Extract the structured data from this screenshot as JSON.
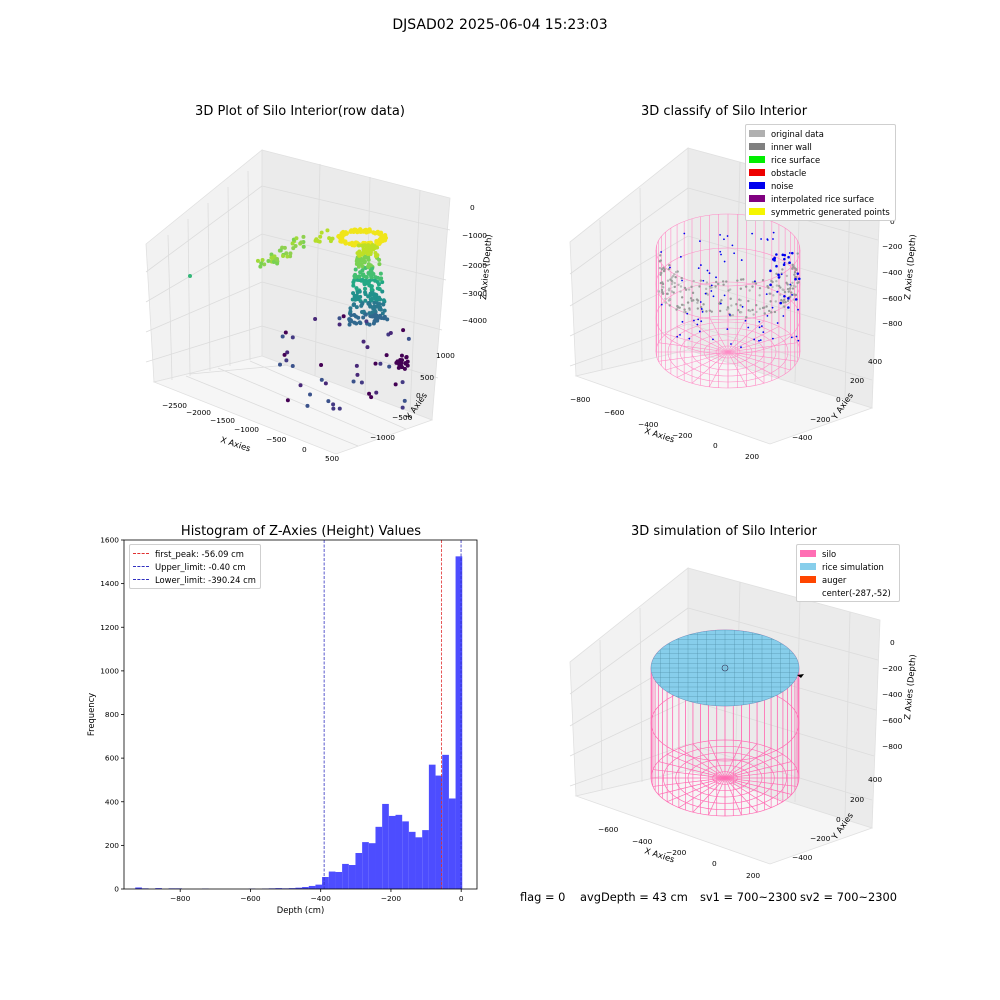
{
  "suptitle": "DJSAD02 2025-06-04 15:23:03",
  "panels": {
    "raw": {
      "title": "3D Plot of Silo Interior(row data)",
      "xlabel": "X Axies",
      "ylabel": "Y Axies",
      "zlabel": "Z Axies (Depth)",
      "xticks": [
        "−2500",
        "−2000",
        "−1500",
        "−1000",
        "−500",
        "0",
        "500"
      ],
      "yticks": [
        "1000",
        "500",
        "0",
        "−500",
        "−1000"
      ],
      "zticks": [
        "0",
        "−1000",
        "−2000",
        "−3000",
        "−4000"
      ]
    },
    "classify": {
      "title": "3D classify of Silo Interior",
      "xlabel": "X Axies",
      "ylabel": "Y Axies",
      "zlabel": "Z Axies (Depth)",
      "xticks": [
        "−800",
        "−600",
        "−400",
        "−200",
        "0",
        "200"
      ],
      "yticks": [
        "400",
        "200",
        "0",
        "−200",
        "−400"
      ],
      "zticks": [
        "0",
        "−200",
        "−400",
        "−600",
        "−800"
      ],
      "legend": [
        {
          "label": "original data",
          "color": "#b0b0b0"
        },
        {
          "label": "inner wall",
          "color": "#808080"
        },
        {
          "label": "rice surface",
          "color": "#00ee00"
        },
        {
          "label": "obstacle",
          "color": "#ee0000"
        },
        {
          "label": "noise",
          "color": "#0000ee"
        },
        {
          "label": "interpolated rice surface",
          "color": "#800080"
        },
        {
          "label": "symmetric generated points",
          "color": "#f5f500"
        }
      ]
    },
    "histogram": {
      "title": "Histogram of Z-Axies (Height) Values",
      "legend": [
        {
          "label": "first_peak: -56.09 cm",
          "color": "#e03030"
        },
        {
          "label": "Upper_limit: -0.40 cm",
          "color": "#3030c0"
        },
        {
          "label": "Lower_limit: -390.24 cm",
          "color": "#3030c0"
        }
      ]
    },
    "simulation": {
      "title": "3D simulation of Silo Interior",
      "xlabel": "X Axies",
      "ylabel": "Y Axies",
      "zlabel": "Z Axies (Depth)",
      "xticks": [
        "−600",
        "−400",
        "−200",
        "0",
        "200"
      ],
      "yticks": [
        "400",
        "200",
        "0",
        "−200",
        "−400"
      ],
      "zticks": [
        "0",
        "−200",
        "−400",
        "−600",
        "−800"
      ],
      "legend": [
        {
          "label": "silo",
          "color": "#ff6eb4"
        },
        {
          "label": "rice simulation",
          "color": "#87ceeb"
        },
        {
          "label": "auger",
          "color": "#ff4500"
        },
        {
          "label": "center(-287,-52)",
          "color": ""
        }
      ]
    }
  },
  "footer": {
    "flag": "flag = 0",
    "avgdepth": "avgDepth = 43 cm",
    "sv1": "sv1 = 700~2300",
    "sv2": "sv2 = 700~2300"
  },
  "chart_data": [
    {
      "type": "bar",
      "title": "Histogram of Z-Axies (Height) Values",
      "xlabel": "Depth (cm)",
      "ylabel": "Frequency",
      "xlim": [
        -960,
        45
      ],
      "ylim": [
        0,
        1600
      ],
      "xticks": [
        -800,
        -600,
        -400,
        -200,
        0
      ],
      "yticks": [
        0,
        200,
        400,
        600,
        800,
        1000,
        1200,
        1400,
        1600
      ],
      "bin_width": 19,
      "bins": [
        {
          "x0": -928,
          "value": 7
        },
        {
          "x0": -909,
          "value": 3
        },
        {
          "x0": -871,
          "value": 4
        },
        {
          "x0": -833,
          "value": 3
        },
        {
          "x0": -814,
          "value": 3
        },
        {
          "x0": -738,
          "value": 2
        },
        {
          "x0": -605,
          "value": 2
        },
        {
          "x0": -567,
          "value": 2
        },
        {
          "x0": -548,
          "value": 3
        },
        {
          "x0": -529,
          "value": 4
        },
        {
          "x0": -510,
          "value": 3
        },
        {
          "x0": -491,
          "value": 4
        },
        {
          "x0": -472,
          "value": 6
        },
        {
          "x0": -453,
          "value": 9
        },
        {
          "x0": -434,
          "value": 14
        },
        {
          "x0": -415,
          "value": 20
        },
        {
          "x0": -396,
          "value": 26
        },
        {
          "x0": -396,
          "value": 55
        },
        {
          "x0": -377,
          "value": 80
        },
        {
          "x0": -358,
          "value": 78
        },
        {
          "x0": -339,
          "value": 115
        },
        {
          "x0": -320,
          "value": 110
        },
        {
          "x0": -301,
          "value": 165
        },
        {
          "x0": -282,
          "value": 215
        },
        {
          "x0": -263,
          "value": 210
        },
        {
          "x0": -244,
          "value": 285
        },
        {
          "x0": -225,
          "value": 390
        },
        {
          "x0": -206,
          "value": 335
        },
        {
          "x0": -187,
          "value": 340
        },
        {
          "x0": -168,
          "value": 310
        },
        {
          "x0": -149,
          "value": 262
        },
        {
          "x0": -130,
          "value": 237
        },
        {
          "x0": -111,
          "value": 270
        },
        {
          "x0": -92,
          "value": 570
        },
        {
          "x0": -73,
          "value": 520
        },
        {
          "x0": -54,
          "value": 615
        },
        {
          "x0": -35,
          "value": 415
        },
        {
          "x0": -16,
          "value": 1525
        }
      ],
      "vlines": [
        {
          "x": -56.09,
          "color": "#e03030"
        },
        {
          "x": -0.4,
          "color": "#3030c0"
        },
        {
          "x": -390.24,
          "color": "#3030c0"
        }
      ],
      "bar_color": "#4d4dff",
      "legend_position": "upper-left"
    }
  ]
}
